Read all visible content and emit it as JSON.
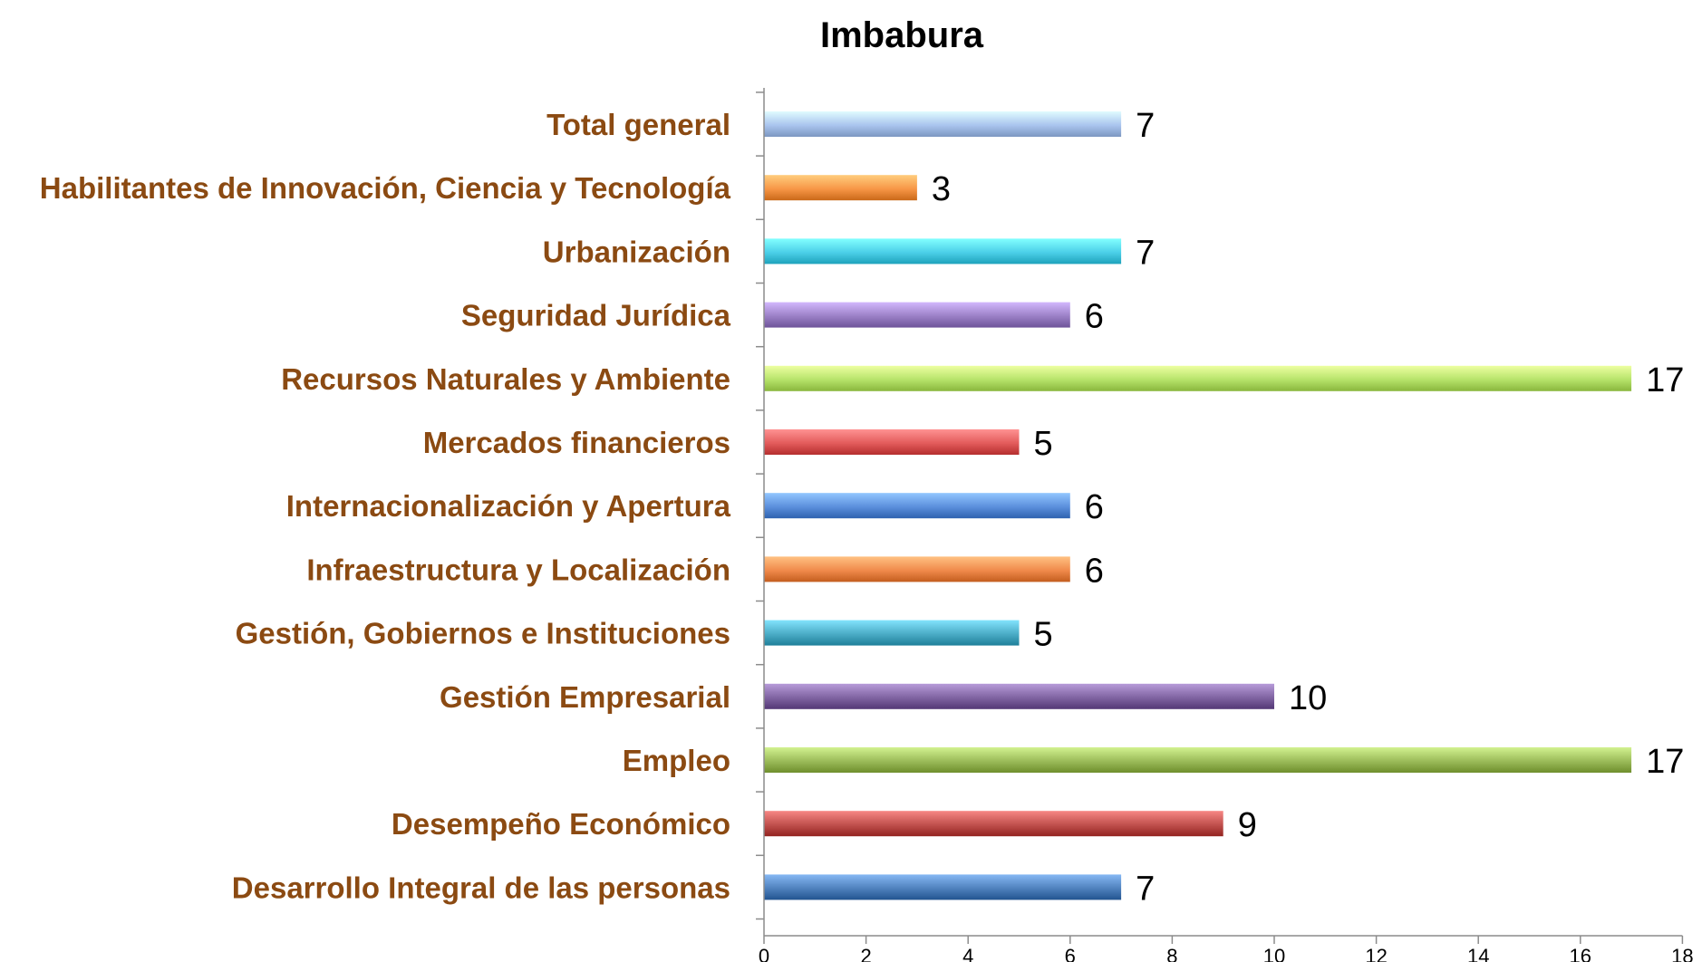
{
  "chart_data": {
    "type": "bar",
    "orientation": "horizontal",
    "title": "Imbabura",
    "xlabel": "",
    "ylabel": "",
    "xlim": [
      0,
      18
    ],
    "x_ticks": [
      0,
      2,
      4,
      6,
      8,
      10,
      12,
      14,
      16,
      18
    ],
    "grid": false,
    "legend": "none",
    "categories": [
      "Total general",
      "Habilitantes de Innovación, Ciencia y Tecnología",
      "Urbanización",
      "Seguridad Jurídica",
      "Recursos Naturales y Ambiente",
      "Mercados financieros",
      "Internacionalización y Apertura",
      "Infraestructura y Localización",
      "Gestión, Gobiernos e Instituciones",
      "Gestión Empresarial",
      "Empleo",
      "Desempeño Económico",
      "Desarrollo Integral de las personas"
    ],
    "values": [
      7,
      3,
      7,
      6,
      17,
      5,
      6,
      6,
      5,
      10,
      17,
      9,
      7
    ],
    "data_labels": [
      "7",
      "3",
      "7",
      "6",
      "17",
      "5",
      "6",
      "6",
      "5",
      "10",
      "17",
      "9",
      "7"
    ],
    "colors": [
      "#a9c4ee",
      "#f79646",
      "#4bcfe8",
      "#9b80c6",
      "#b6e36a",
      "#e25b5b",
      "#5b8fdc",
      "#f08a4b",
      "#4bacc6",
      "#8064a2",
      "#9bbb59",
      "#c0504d",
      "#4f81bd"
    ],
    "label_color": "#8B4A12"
  }
}
